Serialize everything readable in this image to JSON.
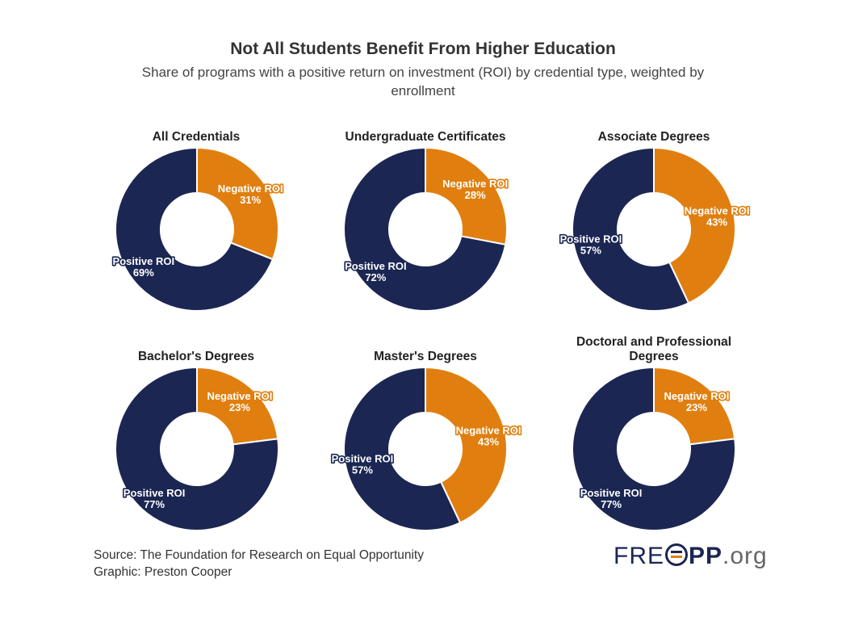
{
  "title": "Not All Students Benefit From Higher Education",
  "subtitle": "Share of programs with a positive return on investment (ROI) by credential type, weighted by enrollment",
  "source_line": "Source: The Foundation for Research on Equal Opportunity",
  "graphic_line": "Graphic: Preston Cooper",
  "logo": {
    "text_light": "FRE",
    "text_bold": "PP",
    "tld": ".org"
  },
  "colors": {
    "positive": "#1b2653",
    "negative": "#e07f0f"
  },
  "chart_data": [
    {
      "type": "pie",
      "title": "All Credentials",
      "slices": [
        {
          "name": "Negative ROI",
          "value": 31,
          "label": "31%"
        },
        {
          "name": "Positive ROI",
          "value": 69,
          "label": "69%"
        }
      ]
    },
    {
      "type": "pie",
      "title": "Undergraduate Certificates",
      "slices": [
        {
          "name": "Negative ROI",
          "value": 28,
          "label": "28%"
        },
        {
          "name": "Positive ROI",
          "value": 72,
          "label": "72%"
        }
      ]
    },
    {
      "type": "pie",
      "title": "Associate Degrees",
      "slices": [
        {
          "name": "Negative ROI",
          "value": 43,
          "label": "43%"
        },
        {
          "name": "Positive ROI",
          "value": 57,
          "label": "57%"
        }
      ]
    },
    {
      "type": "pie",
      "title": "Bachelor's Degrees",
      "slices": [
        {
          "name": "Negative ROI",
          "value": 23,
          "label": "23%"
        },
        {
          "name": "Positive ROI",
          "value": 77,
          "label": "77%"
        }
      ]
    },
    {
      "type": "pie",
      "title": "Master's Degrees",
      "slices": [
        {
          "name": "Negative ROI",
          "value": 43,
          "label": "43%"
        },
        {
          "name": "Positive ROI",
          "value": 57,
          "label": "57%"
        }
      ]
    },
    {
      "type": "pie",
      "title": "Doctoral and Professional Degrees",
      "slices": [
        {
          "name": "Negative ROI",
          "value": 23,
          "label": "23%"
        },
        {
          "name": "Positive ROI",
          "value": 77,
          "label": "77%"
        }
      ]
    }
  ]
}
